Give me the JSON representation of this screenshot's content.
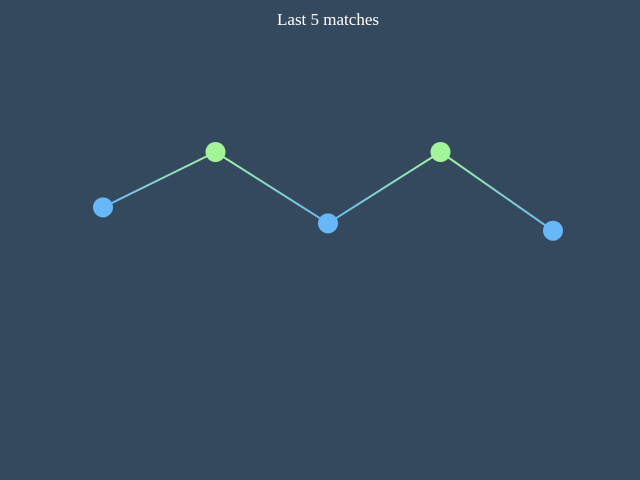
{
  "chart_data": {
    "type": "line",
    "title": "Last 5 matches",
    "x": [
      1,
      2,
      3,
      4,
      5
    ],
    "series": [
      {
        "values": [
          0.55,
          1.0,
          0.42,
          1.0,
          0.36
        ]
      }
    ],
    "ylim": [
      0,
      1
    ],
    "grid": false,
    "colors": {
      "background": "#34495e",
      "high_point": "#a3f59a",
      "low_point": "#67b8f7",
      "title": "#ffffff"
    }
  }
}
